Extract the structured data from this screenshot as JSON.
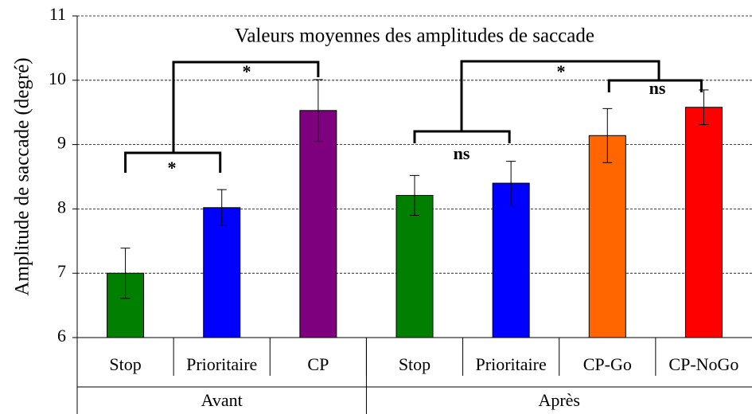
{
  "chart_data": {
    "type": "bar",
    "title": "Valeurs moyennes des amplitudes de saccade",
    "y_label": "Amplitude de saccade (degré)",
    "categories": [
      "Stop",
      "Prioritaire",
      "CP",
      "Stop",
      "Prioritaire",
      "CP-Go",
      "CP-NoGo"
    ],
    "groups": [
      {
        "name": "Avant",
        "size": 3
      },
      {
        "name": "Après",
        "size": 4
      }
    ],
    "values": [
      7.0,
      8.02,
      9.53,
      8.21,
      8.4,
      9.14,
      9.58
    ],
    "errors": [
      0.39,
      0.28,
      0.48,
      0.31,
      0.34,
      0.42,
      0.27
    ],
    "colors": [
      "#007f00",
      "#0000ff",
      "#7f007f",
      "#007f00",
      "#0000ff",
      "#ff6600",
      "#ff0000"
    ],
    "ylim": [
      6,
      11
    ],
    "yticks": [
      6,
      7,
      8,
      9,
      10,
      11
    ],
    "grid": true,
    "annotations": [
      "*",
      "*",
      "ns",
      "ns",
      "*"
    ]
  }
}
